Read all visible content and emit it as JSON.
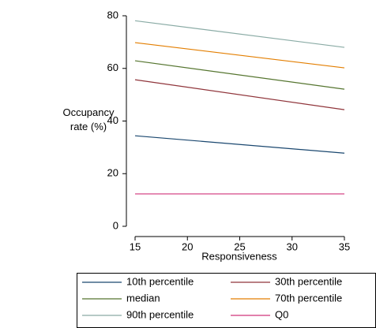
{
  "chart_data": {
    "type": "line",
    "x_label": "Responsiveness",
    "y_label": "Occupancy rate (%)",
    "x": [
      15,
      35
    ],
    "series": [
      {
        "name": "10th percentile",
        "color": "#1a476f",
        "values": [
          34.4,
          27.8
        ]
      },
      {
        "name": "30th percentile",
        "color": "#90353b",
        "values": [
          55.7,
          44.3
        ]
      },
      {
        "name": "median",
        "color": "#55752f",
        "values": [
          62.9,
          52.1
        ]
      },
      {
        "name": "70th percentile",
        "color": "#e37e00",
        "values": [
          69.8,
          60.2
        ]
      },
      {
        "name": "90th percentile",
        "color": "#8aaba5",
        "values": [
          78.1,
          68.0
        ]
      },
      {
        "name": "Q0",
        "color": "#d0357a",
        "values": [
          12.3,
          12.3
        ]
      }
    ],
    "xlim": [
      15,
      35
    ],
    "xticks": [
      15,
      20,
      25,
      30,
      35
    ],
    "ylim": [
      0,
      80
    ],
    "yticks": [
      0,
      20,
      40,
      60,
      80
    ],
    "grid": false,
    "legend_position": "bottom"
  }
}
